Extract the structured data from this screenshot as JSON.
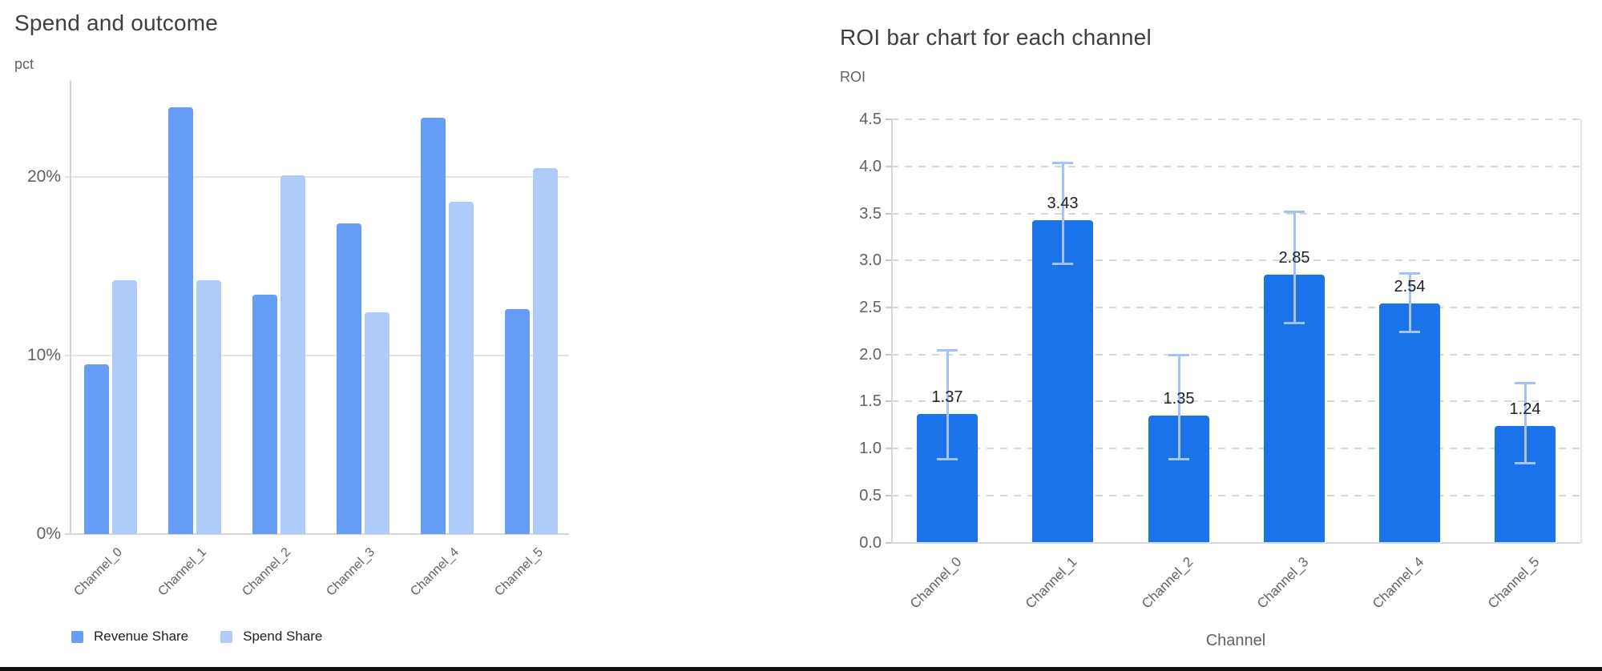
{
  "chart_data": [
    {
      "type": "bar",
      "title": "Spend and outcome",
      "ylabel": "pct",
      "xlabel": "",
      "categories": [
        "Channel_0",
        "Channel_1",
        "Channel_2",
        "Channel_3",
        "Channel_4",
        "Channel_5"
      ],
      "series": [
        {
          "name": "Revenue Share",
          "color": "#669df6",
          "values": [
            9.5,
            23.9,
            13.4,
            17.4,
            23.3,
            12.6
          ]
        },
        {
          "name": "Spend Share",
          "color": "#aecbfa",
          "values": [
            14.2,
            14.2,
            20.1,
            12.4,
            18.6,
            20.5
          ]
        }
      ],
      "ylim": [
        0,
        25.4
      ],
      "yticks": [
        {
          "value": 0,
          "label": "0%"
        },
        {
          "value": 10,
          "label": "10%"
        },
        {
          "value": 20,
          "label": "20%"
        }
      ],
      "grid": "horizontal-solid",
      "legend_position": "bottom-left"
    },
    {
      "type": "bar",
      "title": "ROI bar chart for each channel",
      "ylabel": "ROI",
      "xlabel": "Channel",
      "categories": [
        "Channel_0",
        "Channel_1",
        "Channel_2",
        "Channel_3",
        "Channel_4",
        "Channel_5"
      ],
      "values": [
        1.37,
        3.43,
        1.35,
        2.85,
        2.54,
        1.24
      ],
      "value_labels": [
        "1.37",
        "3.43",
        "1.35",
        "2.85",
        "2.54",
        "1.24"
      ],
      "error_low": [
        0.88,
        2.96,
        0.88,
        2.33,
        2.24,
        0.84
      ],
      "error_high": [
        2.05,
        4.04,
        2.0,
        3.52,
        2.87,
        1.7
      ],
      "bar_color": "#1a73e8",
      "error_color": "#a4c2f8",
      "ylim": [
        0,
        4.5
      ],
      "ytick_step": 0.5,
      "grid": "horizontal-dashed",
      "legend_position": "none"
    }
  ]
}
